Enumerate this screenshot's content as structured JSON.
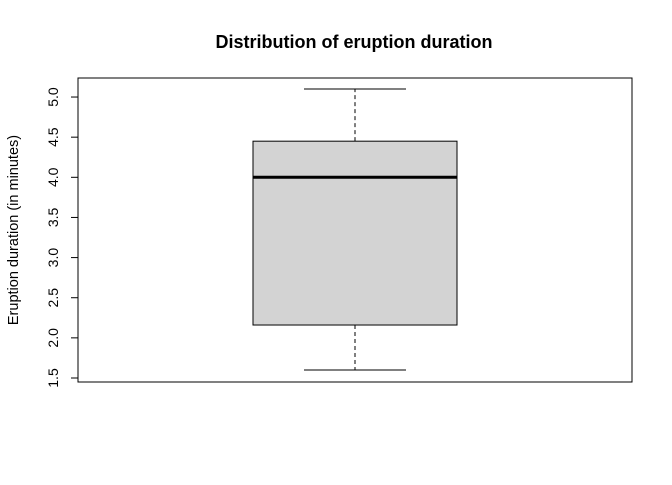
{
  "chart_data": {
    "type": "box",
    "title": "Distribution of eruption duration",
    "xlabel": "",
    "ylabel": "Eruption duration (in minutes)",
    "ylim": [
      1.5,
      5.1
    ],
    "yticks": [
      "1.5",
      "2.0",
      "2.5",
      "3.0",
      "3.5",
      "4.0",
      "4.5",
      "5.0"
    ],
    "ytick_values": [
      1.5,
      2.0,
      2.5,
      3.0,
      3.5,
      4.0,
      4.5,
      5.0
    ],
    "box": {
      "min": 1.6,
      "q1": 2.16,
      "median": 4.0,
      "q3": 4.45,
      "max": 5.1
    },
    "grid": false,
    "box_fill": "#d3d3d3",
    "line_color": "#000000"
  }
}
